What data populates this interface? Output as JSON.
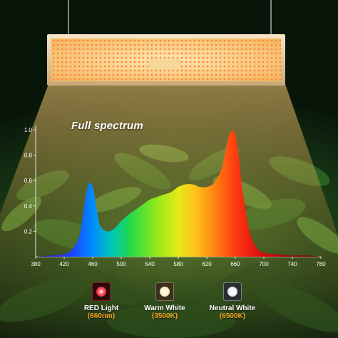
{
  "colors": {
    "accent_orange": "#f5a623",
    "red_chip": "#c8102e",
    "warm_chip": "#f3e2b8",
    "neutral_chip": "#eef2f6"
  },
  "chart_data": {
    "type": "area",
    "title": "Full spectrum",
    "xlabel": "",
    "ylabel": "",
    "xlim": [
      380,
      780
    ],
    "ylim": [
      0,
      1.0
    ],
    "x_ticks": [
      380,
      420,
      460,
      500,
      540,
      580,
      620,
      660,
      700,
      740,
      780
    ],
    "x_tick_labels": [
      "380",
      "420",
      "460",
      "500",
      "540",
      "580",
      "620",
      "660",
      "700",
      "740",
      "780"
    ],
    "y_ticks": [
      0.2,
      0.4,
      0.6,
      0.8,
      1.0
    ],
    "y_tick_labels": [
      "0.2",
      "0.4",
      "0.6",
      "0.8",
      "1.0"
    ],
    "grid": false,
    "series": [
      {
        "x": [
          380,
          400,
          420,
          430,
          440,
          445,
          450,
          455,
          460,
          465,
          470,
          480,
          490,
          500,
          510,
          520,
          530,
          540,
          550,
          560,
          570,
          580,
          590,
          600,
          610,
          620,
          630,
          640,
          645,
          650,
          655,
          660,
          665,
          670,
          680,
          690,
          700,
          720,
          740,
          760,
          780
        ],
        "y": [
          0.0,
          0.01,
          0.02,
          0.05,
          0.14,
          0.28,
          0.47,
          0.58,
          0.55,
          0.4,
          0.25,
          0.2,
          0.22,
          0.28,
          0.33,
          0.37,
          0.41,
          0.45,
          0.47,
          0.49,
          0.51,
          0.55,
          0.57,
          0.57,
          0.55,
          0.55,
          0.58,
          0.68,
          0.8,
          0.93,
          0.99,
          0.96,
          0.78,
          0.52,
          0.2,
          0.07,
          0.03,
          0.02,
          0.01,
          0.01,
          0.0
        ]
      }
    ]
  },
  "legend": [
    {
      "label": "RED Light",
      "sub": "(660nm)"
    },
    {
      "label": "Warm White",
      "sub": "(3500K)"
    },
    {
      "label": "Neutral White",
      "sub": "(6500K)"
    }
  ]
}
